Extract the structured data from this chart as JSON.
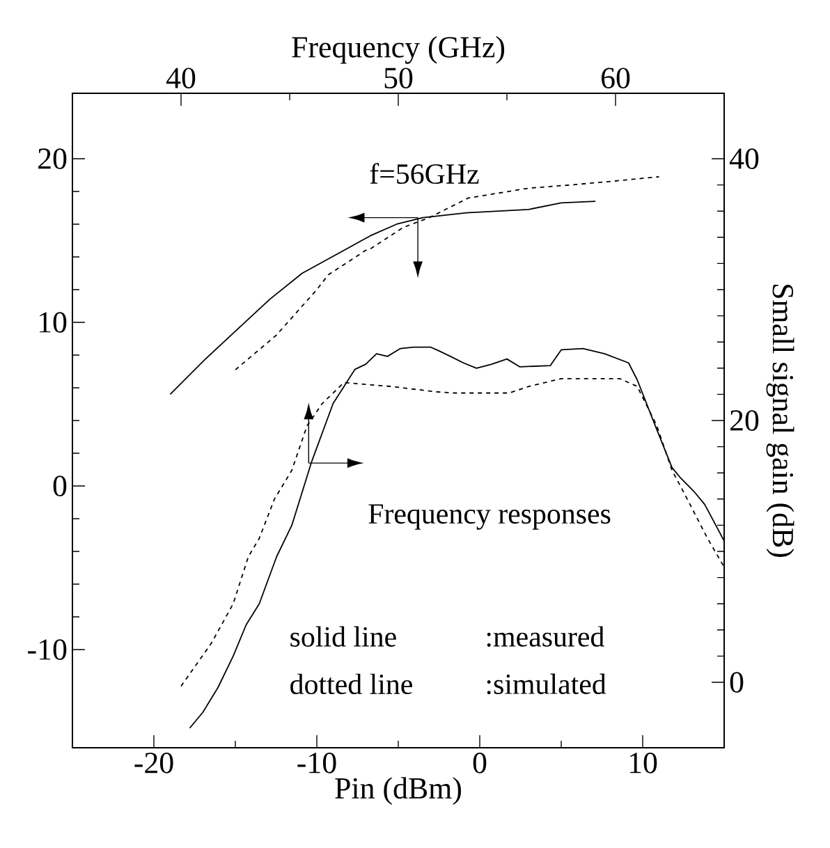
{
  "chart_data": [
    {
      "type": "line",
      "xlabel": "Pin (dBm)",
      "xlim": [
        -25,
        15
      ],
      "xticks": [
        -20,
        -10,
        0,
        10
      ],
      "ylim": [
        -16,
        24
      ],
      "yticks": [
        -10,
        0,
        10,
        20
      ],
      "annotations": [
        "f=56GHz",
        "Frequency responses",
        "solid line",
        ":measured",
        "dotted line",
        ":simulated"
      ],
      "series": [
        {
          "color": "#000000",
          "line_style": "solid",
          "x": [
            -19.0,
            -16.9,
            -12.9,
            -10.9,
            -8.7,
            -6.7,
            -5.1,
            -3.5,
            -0.8,
            3.0,
            5.0,
            7.1
          ],
          "values": [
            5.6,
            7.7,
            11.4,
            13.0,
            14.2,
            15.3,
            16.0,
            16.4,
            16.7,
            16.9,
            17.3,
            17.4
          ]
        },
        {
          "color": "#000000",
          "line_style": "dashed",
          "x": [
            -15.0,
            -12.5,
            -10.0,
            -9.3,
            -7.0,
            -6.7,
            -4.7,
            -3.1,
            -0.7,
            3.0,
            5.6,
            7.9,
            11.0
          ],
          "values": [
            7.1,
            9.2,
            12.0,
            12.9,
            14.4,
            14.5,
            15.8,
            16.4,
            17.6,
            18.2,
            18.4,
            18.6,
            18.9
          ]
        }
      ]
    },
    {
      "type": "line",
      "xlabel": "Frequency (GHz)",
      "ylabel": "Small signal gain (dB)",
      "xlim": [
        35,
        65
      ],
      "xticks": [
        40,
        50,
        60
      ],
      "ylim": [
        -5,
        45
      ],
      "yticks": [
        0,
        20,
        40
      ],
      "series": [
        {
          "color": "#000000",
          "line_style": "solid",
          "x": [
            40.4,
            41.0,
            41.7,
            42.4,
            43.0,
            43.6,
            44.4,
            45.1,
            46.0,
            47.0,
            48.0,
            48.5,
            49.0,
            49.5,
            50.1,
            50.7,
            51.5,
            51.9,
            52.4,
            53.0,
            53.6,
            54.3,
            55.0,
            55.6,
            57.0,
            57.5,
            58.5,
            59.5,
            60.6,
            61.0,
            61.9,
            62.6,
            63.0,
            63.6,
            64.1,
            65.0
          ],
          "values": [
            -3.5,
            -2.3,
            -0.4,
            2.0,
            4.4,
            6.0,
            9.6,
            12.0,
            16.8,
            21.3,
            23.9,
            24.3,
            25.1,
            24.9,
            25.5,
            25.6,
            25.6,
            25.3,
            24.9,
            24.4,
            24.0,
            24.3,
            24.7,
            24.1,
            24.2,
            25.4,
            25.5,
            25.1,
            24.4,
            23.1,
            19.3,
            16.4,
            15.6,
            14.6,
            13.6,
            10.8
          ]
        },
        {
          "color": "#000000",
          "line_style": "dashed",
          "x": [
            40.0,
            41.4,
            42.4,
            43.1,
            43.6,
            44.3,
            45.1,
            45.8,
            46.5,
            47.5,
            49.7,
            51.7,
            52.6,
            55.1,
            56.0,
            57.5,
            60.2,
            61.0,
            61.9,
            62.6,
            63.3,
            64.2,
            65.0
          ],
          "values": [
            -0.3,
            3.0,
            6.0,
            9.6,
            11.0,
            14.0,
            16.2,
            19.6,
            21.3,
            22.9,
            22.6,
            22.2,
            22.1,
            22.1,
            22.6,
            23.2,
            23.2,
            22.6,
            19.6,
            16.2,
            14.0,
            11.1,
            8.8
          ]
        }
      ]
    }
  ]
}
